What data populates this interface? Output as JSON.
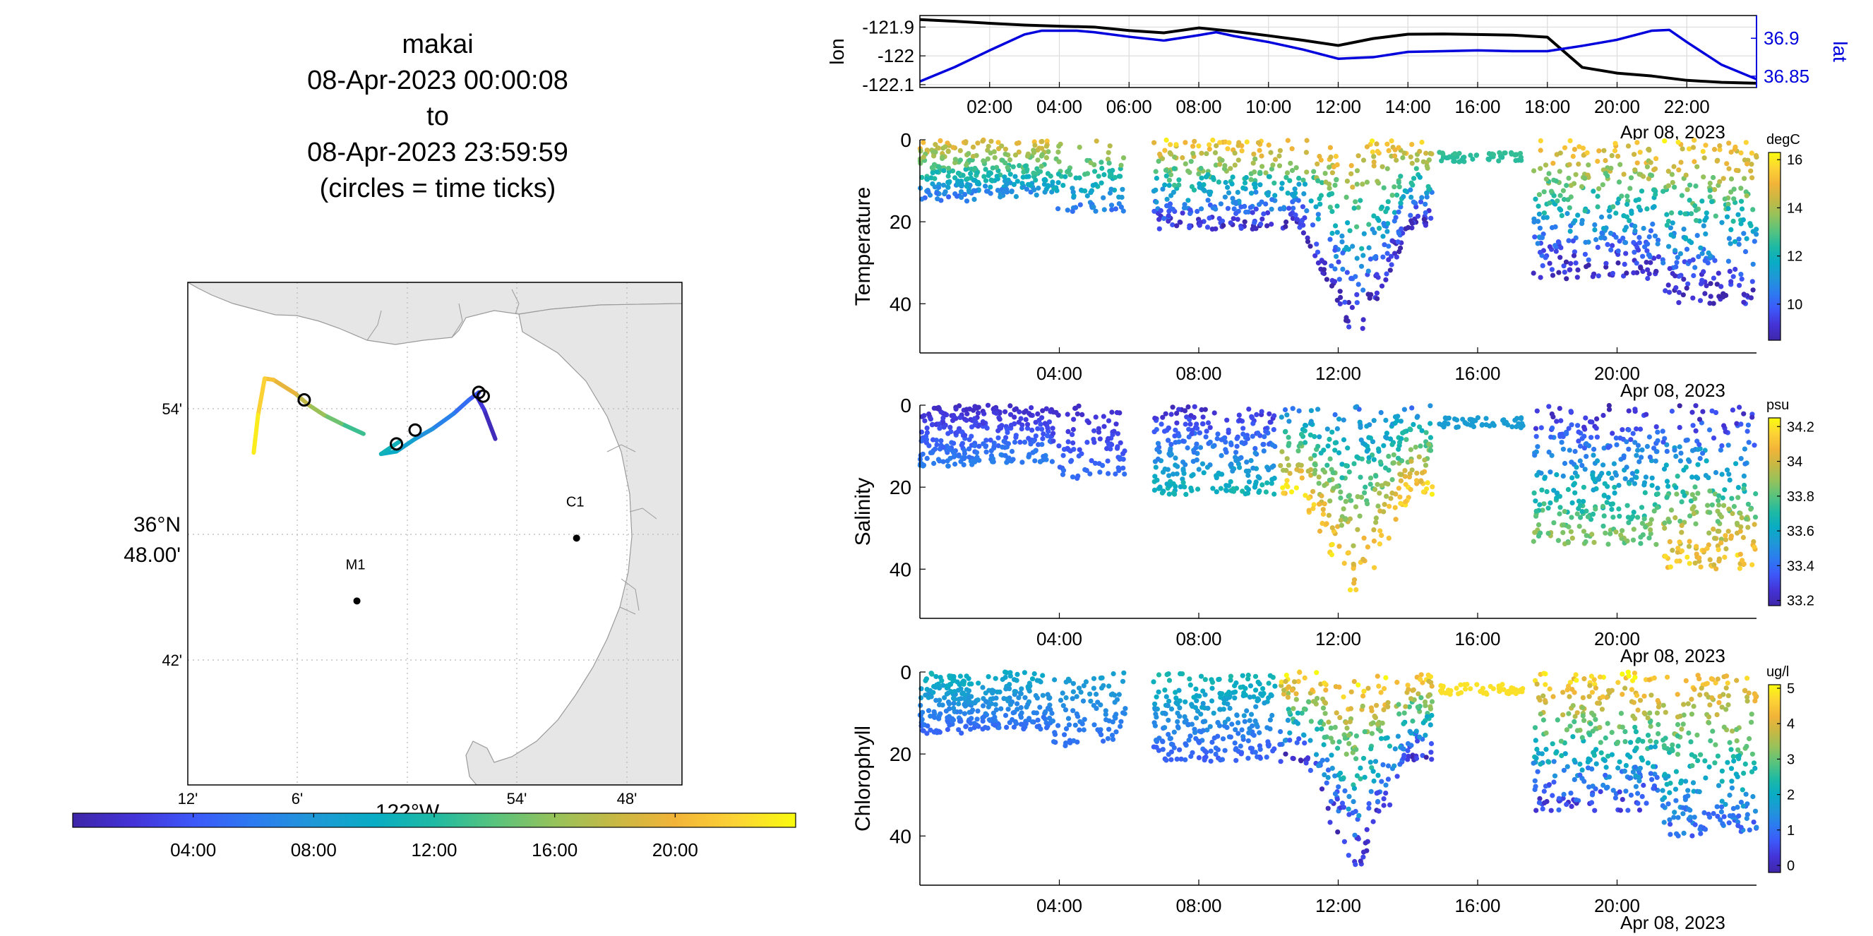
{
  "title": {
    "vehicle": "makai",
    "start": "08-Apr-2023 00:00:08",
    "to": "to",
    "end": "08-Apr-2023 23:59:59",
    "note": "(circles = time ticks)"
  },
  "colors": {
    "parula": [
      "#3e26a8",
      "#4433d7",
      "#3d58f9",
      "#2c7bf0",
      "#1f98d7",
      "#08acc4",
      "#1fbaa3",
      "#58c37d",
      "#96c25b",
      "#c7b844",
      "#f2b438",
      "#fcd335",
      "#f9fb0e"
    ],
    "lat_axis": "#0000dd",
    "lon_line": "#000000",
    "land": "#e6e6e6",
    "grid": "#b8b8b8"
  },
  "chart_data": [
    {
      "id": "track_map",
      "type": "scatter",
      "map": true,
      "lon_ticks": [
        "12'",
        "6'",
        "54'",
        "48'"
      ],
      "lon_label": "122°W",
      "lat_ticks": [
        "54'",
        "42'"
      ],
      "lat_label_deg": "36°N",
      "lat_label_min": "48.00'",
      "stations": [
        {
          "name": "M1",
          "lon": -122.046,
          "lat": 36.747
        },
        {
          "name": "C1",
          "lon": -121.846,
          "lat": 36.797
        }
      ],
      "track": [
        {
          "t": 0.0,
          "lon": -121.92,
          "lat": 36.876
        },
        {
          "t": 1.5,
          "lon": -121.93,
          "lat": 36.899
        },
        {
          "t": 2.8,
          "lon": -121.937,
          "lat": 36.91
        },
        {
          "t": 3.5,
          "lon": -121.935,
          "lat": 36.913
        },
        {
          "t": 4.4,
          "lon": -121.944,
          "lat": 36.907
        },
        {
          "t": 6.0,
          "lon": -121.958,
          "lat": 36.896
        },
        {
          "t": 7.0,
          "lon": -121.977,
          "lat": 36.884
        },
        {
          "t": 8.2,
          "lon": -121.993,
          "lat": 36.876
        },
        {
          "t": 9.5,
          "lon": -122.01,
          "lat": 36.866
        },
        {
          "t": 10.4,
          "lon": -122.024,
          "lat": 36.864
        },
        {
          "t": 11.0,
          "lon": -122.007,
          "lat": 36.874
        },
        {
          "t": 12.0,
          "lon": -122.04,
          "lat": 36.88
        },
        {
          "t": 14.0,
          "lon": -122.06,
          "lat": 36.888
        },
        {
          "t": 15.5,
          "lon": -122.076,
          "lat": 36.895
        },
        {
          "t": 17.0,
          "lon": -122.09,
          "lat": 36.903
        },
        {
          "t": 18.5,
          "lon": -122.102,
          "lat": 36.912
        },
        {
          "t": 20.5,
          "lon": -122.122,
          "lat": 36.923
        },
        {
          "t": 21.3,
          "lon": -122.13,
          "lat": 36.924
        },
        {
          "t": 22.5,
          "lon": -122.136,
          "lat": 36.895
        },
        {
          "t": 24.0,
          "lon": -122.14,
          "lat": 36.865
        }
      ],
      "time_tick_circles": [
        {
          "lon": -121.931,
          "lat": 36.91
        },
        {
          "lon": -121.935,
          "lat": 36.913
        },
        {
          "lon": -121.993,
          "lat": 36.883
        },
        {
          "lon": -122.01,
          "lat": 36.872
        },
        {
          "lon": -122.094,
          "lat": 36.907
        }
      ]
    },
    {
      "id": "time_colorbar",
      "type": "heatmap",
      "ticks": [
        "04:00",
        "08:00",
        "12:00",
        "16:00",
        "20:00"
      ],
      "tick_hours": [
        4,
        8,
        12,
        16,
        20
      ],
      "range_hours": [
        0,
        24
      ]
    },
    {
      "id": "lon_lat",
      "type": "line",
      "ylabel_left": "lon",
      "ylabel_right": "lat",
      "yticks_left": [
        "-121.9",
        "-122",
        "-122.1"
      ],
      "ytick_values_left": [
        -121.9,
        -122.0,
        -122.1
      ],
      "ylim_left": [
        -122.11,
        -121.86
      ],
      "yticks_right": [
        "36.9",
        "36.85"
      ],
      "ytick_values_right": [
        36.9,
        36.85
      ],
      "ylim_right": [
        36.835,
        36.93
      ],
      "xticks": [
        "02:00",
        "04:00",
        "06:00",
        "08:00",
        "10:00",
        "12:00",
        "14:00",
        "16:00",
        "18:00",
        "20:00",
        "22:00"
      ],
      "xtick_hours": [
        2,
        4,
        6,
        8,
        10,
        12,
        14,
        16,
        18,
        20,
        22
      ],
      "xlim_hours": [
        0,
        24
      ],
      "date_label": "Apr 08, 2023",
      "series": [
        {
          "name": "lon",
          "x": [
            0,
            1,
            2,
            3,
            4,
            5,
            6,
            7,
            8,
            9,
            10,
            11,
            12,
            13,
            14,
            15,
            16,
            17,
            18,
            19,
            20,
            21,
            22,
            23,
            24
          ],
          "y": [
            -121.874,
            -121.88,
            -121.887,
            -121.893,
            -121.897,
            -121.9,
            -121.912,
            -121.92,
            -121.903,
            -121.915,
            -121.93,
            -121.946,
            -121.964,
            -121.94,
            -121.925,
            -121.924,
            -121.926,
            -121.928,
            -121.935,
            -122.04,
            -122.06,
            -122.07,
            -122.085,
            -122.092,
            -122.095
          ]
        },
        {
          "name": "lat",
          "x": [
            0,
            1,
            2,
            3,
            3.5,
            4.5,
            5,
            6,
            7,
            8,
            8.5,
            9,
            10,
            11,
            12,
            13,
            14,
            15,
            16,
            17,
            18,
            19,
            20,
            21,
            21.5,
            22,
            23,
            24
          ],
          "y": [
            36.843,
            36.862,
            36.884,
            36.905,
            36.91,
            36.91,
            36.908,
            36.902,
            36.897,
            36.904,
            36.908,
            36.903,
            36.895,
            36.885,
            36.873,
            36.875,
            36.882,
            36.883,
            36.884,
            36.883,
            36.883,
            36.89,
            36.898,
            36.91,
            36.911,
            36.895,
            36.865,
            36.846
          ]
        }
      ]
    },
    {
      "id": "temperature",
      "type": "scatter",
      "ylabel": "Temperature",
      "yticks": [
        "0",
        "20",
        "40"
      ],
      "ytick_values": [
        0,
        20,
        40
      ],
      "ylim": [
        0,
        52
      ],
      "xticks": [
        "04:00",
        "08:00",
        "12:00",
        "16:00",
        "20:00"
      ],
      "xtick_hours": [
        4,
        8,
        12,
        16,
        20
      ],
      "xlim_hours": [
        0,
        24
      ],
      "date_label": "Apr 08, 2023",
      "colorbar": {
        "unit": "degC",
        "ticks": [
          "16",
          "14",
          "12",
          "10"
        ],
        "tick_values": [
          16,
          14,
          12,
          10
        ],
        "range": [
          8.5,
          16.3
        ]
      },
      "profiles": [
        {
          "t0": 0.0,
          "t1": 1.7,
          "dmax": 15,
          "top": 15.0,
          "bot": 10.5,
          "n": 160
        },
        {
          "t0": 1.8,
          "t1": 3.8,
          "dmax": 14,
          "top": 15.0,
          "bot": 10.8,
          "n": 140
        },
        {
          "t0": 3.8,
          "t1": 5.9,
          "dmax": 18,
          "top": 14.5,
          "bot": 10.5,
          "n": 90
        },
        {
          "t0": 6.7,
          "t1": 10.2,
          "dmax": 22,
          "top": 15.5,
          "bot": 9.2,
          "n": 260
        },
        {
          "t0": 10.3,
          "t1": 14.7,
          "dmax": 50,
          "top": 15.5,
          "bot": 8.9,
          "n": 340
        },
        {
          "t0": 14.9,
          "t1": 17.3,
          "dmax": 5,
          "top": 13.0,
          "bot": 12.5,
          "n": 50
        },
        {
          "t0": 17.6,
          "t1": 21.2,
          "dmax": 34,
          "top": 15.5,
          "bot": 9.0,
          "n": 300
        },
        {
          "t0": 21.3,
          "t1": 24.0,
          "dmax": 40,
          "top": 15.5,
          "bot": 9.0,
          "n": 230
        }
      ]
    },
    {
      "id": "salinity",
      "type": "scatter",
      "ylabel": "Salinity",
      "yticks": [
        "0",
        "20",
        "40"
      ],
      "ytick_values": [
        0,
        20,
        40
      ],
      "ylim": [
        0,
        52
      ],
      "xticks": [
        "04:00",
        "08:00",
        "12:00",
        "16:00",
        "20:00"
      ],
      "xtick_hours": [
        4,
        8,
        12,
        16,
        20
      ],
      "xlim_hours": [
        0,
        24
      ],
      "date_label": "Apr 08, 2023",
      "colorbar": {
        "unit": "psu",
        "ticks": [
          "34.2",
          "34",
          "33.8",
          "33.6",
          "33.4",
          "33.2"
        ],
        "tick_values": [
          34.2,
          34.0,
          33.8,
          33.6,
          33.4,
          33.2
        ],
        "range": [
          33.17,
          34.25
        ]
      },
      "profiles": [
        {
          "t0": 0.0,
          "t1": 1.7,
          "dmax": 15,
          "top": 33.22,
          "bot": 33.45,
          "n": 160
        },
        {
          "t0": 1.8,
          "t1": 3.8,
          "dmax": 14,
          "top": 33.22,
          "bot": 33.45,
          "n": 140
        },
        {
          "t0": 3.8,
          "t1": 5.9,
          "dmax": 18,
          "top": 33.22,
          "bot": 33.4,
          "n": 90
        },
        {
          "t0": 6.7,
          "t1": 10.2,
          "dmax": 22,
          "top": 33.22,
          "bot": 33.65,
          "n": 260
        },
        {
          "t0": 10.3,
          "t1": 14.7,
          "dmax": 50,
          "top": 33.45,
          "bot": 34.15,
          "n": 340
        },
        {
          "t0": 14.9,
          "t1": 17.3,
          "dmax": 5,
          "top": 33.55,
          "bot": 33.55,
          "n": 50
        },
        {
          "t0": 17.6,
          "t1": 21.2,
          "dmax": 34,
          "top": 33.22,
          "bot": 33.85,
          "n": 300
        },
        {
          "t0": 21.3,
          "t1": 24.0,
          "dmax": 40,
          "top": 33.22,
          "bot": 34.1,
          "n": 230
        }
      ]
    },
    {
      "id": "chlorophyll",
      "type": "scatter",
      "ylabel": "Chlorophyll",
      "yticks": [
        "0",
        "20",
        "40"
      ],
      "ytick_values": [
        0,
        20,
        40
      ],
      "ylim": [
        0,
        52
      ],
      "xticks": [
        "04:00",
        "08:00",
        "12:00",
        "16:00",
        "20:00"
      ],
      "xtick_hours": [
        4,
        8,
        12,
        16,
        20
      ],
      "xlim_hours": [
        0,
        24
      ],
      "date_label": "Apr 08, 2023",
      "colorbar": {
        "unit": "ug/l",
        "ticks": [
          "5",
          "4",
          "3",
          "2",
          "1",
          "0"
        ],
        "tick_values": [
          5,
          4,
          3,
          2,
          1,
          0
        ],
        "range": [
          -0.2,
          5.1
        ]
      },
      "profiles": [
        {
          "t0": 0.0,
          "t1": 1.7,
          "dmax": 15,
          "top": 2.2,
          "bot": 0.9,
          "n": 160
        },
        {
          "t0": 1.8,
          "t1": 3.8,
          "dmax": 14,
          "top": 2.0,
          "bot": 1.0,
          "n": 140
        },
        {
          "t0": 3.8,
          "t1": 5.9,
          "dmax": 18,
          "top": 1.8,
          "bot": 1.0,
          "n": 90
        },
        {
          "t0": 6.7,
          "t1": 10.2,
          "dmax": 22,
          "top": 2.3,
          "bot": 0.8,
          "n": 260
        },
        {
          "t0": 10.3,
          "t1": 14.7,
          "dmax": 50,
          "top": 4.9,
          "bot": 0.2,
          "n": 340
        },
        {
          "t0": 14.9,
          "t1": 17.3,
          "dmax": 5,
          "top": 4.9,
          "bot": 4.8,
          "n": 50
        },
        {
          "t0": 17.6,
          "t1": 21.2,
          "dmax": 34,
          "top": 4.8,
          "bot": 0.5,
          "n": 300
        },
        {
          "t0": 21.3,
          "t1": 24.0,
          "dmax": 40,
          "top": 4.5,
          "bot": 1.0,
          "n": 230
        }
      ]
    }
  ]
}
